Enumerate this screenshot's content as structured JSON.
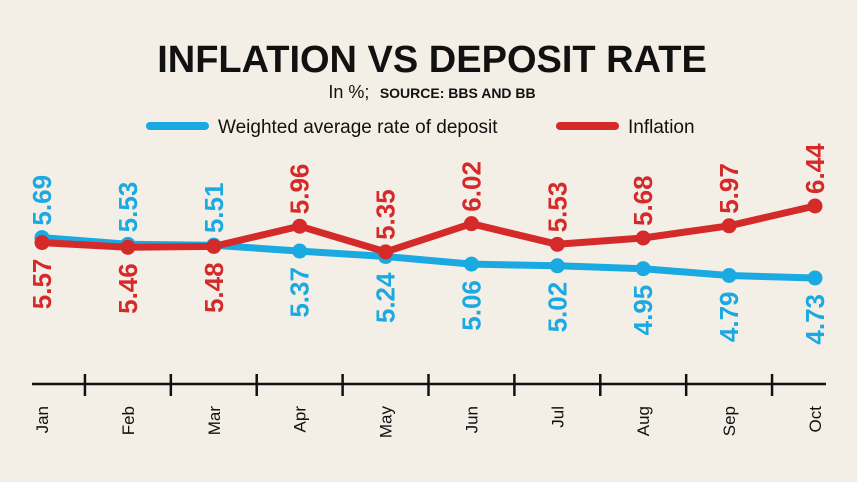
{
  "chart_data": {
    "type": "line",
    "title": "INFLATION VS DEPOSIT RATE",
    "subtitle_unit": "In %;",
    "subtitle_source": "SOURCE: BBS AND BB",
    "categories": [
      "Jan",
      "Feb",
      "Mar",
      "Apr",
      "May",
      "Jun",
      "Jul",
      "Aug",
      "Sep",
      "Oct"
    ],
    "series": [
      {
        "name": "Weighted average rate of deposit",
        "color": "#1aa9e0",
        "values": [
          5.69,
          5.53,
          5.51,
          5.37,
          5.24,
          5.06,
          5.02,
          4.95,
          4.79,
          4.73
        ],
        "labels": [
          "5.69",
          "5.53",
          "5.51",
          "5.37",
          "5.24",
          "5.06",
          "5.02",
          "4.95",
          "4.79",
          "4.73"
        ]
      },
      {
        "name": "Inflation",
        "color": "#d42a2a",
        "values": [
          5.57,
          5.46,
          5.48,
          5.96,
          5.35,
          6.02,
          5.53,
          5.68,
          5.97,
          6.44
        ],
        "labels": [
          "5.57",
          "5.46",
          "5.48",
          "5.96",
          "5.35",
          "6.02",
          "5.53",
          "5.68",
          "5.97",
          "6.44"
        ]
      }
    ],
    "ylim": [
      4.6,
      6.6
    ],
    "xlabel": "",
    "ylabel": "",
    "grid": false,
    "legend": "top-center"
  }
}
